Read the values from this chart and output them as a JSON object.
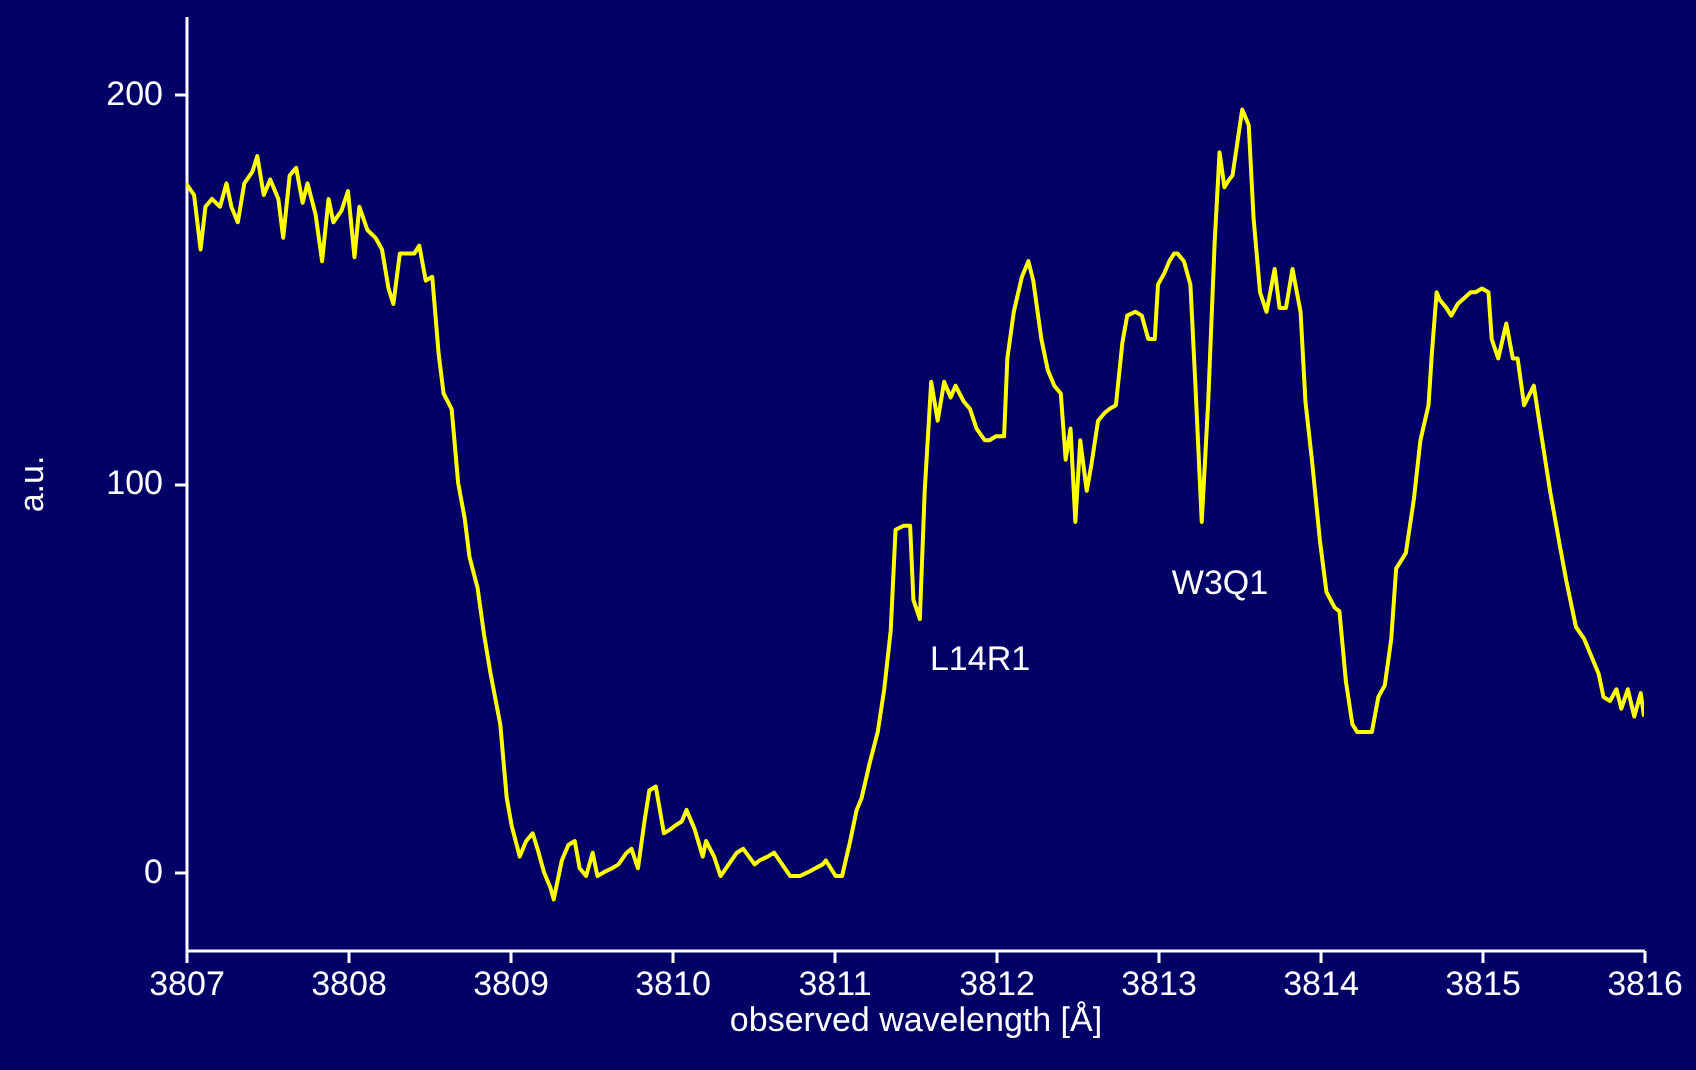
{
  "chart_data": {
    "type": "line",
    "xlabel": "observed wavelength [Å]",
    "ylabel": "a.u.",
    "xlim": [
      3807,
      3816
    ],
    "xticks": [
      3807,
      3808,
      3809,
      3810,
      3811,
      3812,
      3813,
      3814,
      3815,
      3816
    ],
    "ylim": [
      -20,
      220
    ],
    "yticks": [
      0,
      100,
      200
    ],
    "grid": false,
    "marker": "none",
    "line_style": "solid",
    "annotations": [
      "L14R1",
      "W3Q1"
    ],
    "series": [
      {
        "color": "#ffff00",
        "x": [
          3807.0,
          3807.05,
          3807.09,
          3807.12,
          3807.16,
          3807.21,
          3807.25,
          3807.28,
          3807.32,
          3807.36,
          3807.41,
          3807.44,
          3807.48,
          3807.52,
          3807.57,
          3807.6,
          3807.64,
          3807.68,
          3807.72,
          3807.75,
          3807.8,
          3807.84,
          3807.88,
          3807.91,
          3807.96,
          3808.0,
          3808.04,
          3808.07,
          3808.12,
          3808.17,
          3808.21,
          3808.25,
          3808.28,
          3808.32,
          3808.37,
          3808.41,
          3808.44,
          3808.48,
          3808.52,
          3808.56,
          3808.59,
          3808.64,
          3808.68,
          3808.72,
          3808.75,
          3808.8,
          3808.84,
          3808.88,
          3808.94,
          3808.98,
          3809.01,
          3809.06,
          3809.1,
          3809.14,
          3809.17,
          3809.21,
          3809.25,
          3809.27,
          3809.32,
          3809.36,
          3809.4,
          3809.43,
          3809.47,
          3809.51,
          3809.54,
          3809.58,
          3809.63,
          3809.67,
          3809.72,
          3809.75,
          3809.79,
          3809.83,
          3809.86,
          3809.9,
          3809.95,
          3809.99,
          3810.02,
          3810.06,
          3810.09,
          3810.14,
          3810.19,
          3810.21,
          3810.26,
          3810.3,
          3810.35,
          3810.4,
          3810.44,
          3810.51,
          3810.54,
          3810.59,
          3810.63,
          3810.68,
          3810.73,
          3810.79,
          3810.84,
          3810.93,
          3810.95,
          3811.01,
          3811.05,
          3811.1,
          3811.14,
          3811.17,
          3811.22,
          3811.27,
          3811.31,
          3811.35,
          3811.38,
          3811.43,
          3811.47,
          3811.49,
          3811.53,
          3811.56,
          3811.6,
          3811.64,
          3811.68,
          3811.72,
          3811.75,
          3811.8,
          3811.84,
          3811.88,
          3811.93,
          3811.96,
          3812.0,
          3812.05,
          3812.07,
          3812.11,
          3812.16,
          3812.2,
          3812.23,
          3812.28,
          3812.32,
          3812.36,
          3812.4,
          3812.43,
          3812.46,
          3812.49,
          3812.52,
          3812.56,
          3812.59,
          3812.63,
          3812.67,
          3812.7,
          3812.74,
          3812.78,
          3812.81,
          3812.86,
          3812.9,
          3812.94,
          3812.98,
          3813.0,
          3813.04,
          3813.07,
          3813.1,
          3813.12,
          3813.16,
          3813.2,
          3813.23,
          3813.27,
          3813.31,
          3813.35,
          3813.38,
          3813.41,
          3813.44,
          3813.46,
          3813.52,
          3813.56,
          3813.59,
          3813.63,
          3813.67,
          3813.72,
          3813.75,
          3813.79,
          3813.83,
          3813.88,
          3813.91,
          3813.95,
          3814.0,
          3814.04,
          3814.09,
          3814.12,
          3814.16,
          3814.2,
          3814.23,
          3814.32,
          3814.36,
          3814.4,
          3814.44,
          3814.47,
          3814.53,
          3814.58,
          3814.62,
          3814.67,
          3814.69,
          3814.72,
          3814.74,
          3814.78,
          3814.81,
          3814.85,
          3814.93,
          3814.96,
          3815.0,
          3815.04,
          3815.06,
          3815.1,
          3815.15,
          3815.19,
          3815.22,
          3815.26,
          3815.32,
          3815.36,
          3815.42,
          3815.48,
          3815.52,
          3815.58,
          3815.63,
          3815.67,
          3815.72,
          3815.75,
          3815.79,
          3815.83,
          3815.86,
          3815.9,
          3815.94,
          3815.98,
          3816.0
        ],
        "values": [
          177,
          174,
          160,
          171,
          173,
          171,
          177,
          171,
          167,
          177,
          180,
          184,
          174,
          178,
          173,
          163,
          179,
          181,
          172,
          177,
          169,
          157,
          173,
          167,
          170,
          175,
          158,
          171,
          165,
          163,
          160,
          150,
          146,
          159,
          159,
          159,
          161,
          152,
          153,
          133,
          123,
          119,
          100,
          91,
          81,
          73,
          61,
          51,
          38,
          19,
          12,
          4,
          8,
          10,
          6,
          0,
          -4,
          -7,
          3,
          7,
          8,
          1,
          -1,
          5,
          -1,
          0,
          1,
          2,
          5,
          6,
          1,
          13,
          21,
          22,
          10,
          11,
          12,
          13,
          16,
          11,
          4,
          8,
          4,
          -1,
          2,
          5,
          6,
          2,
          3,
          4,
          5,
          2,
          -1,
          -1,
          0,
          2,
          3,
          -1,
          -1,
          8,
          16,
          19,
          28,
          36,
          47,
          62,
          88,
          89,
          89,
          70,
          65,
          98,
          126,
          116,
          126,
          122,
          125,
          121,
          119,
          114,
          111,
          111,
          112,
          112,
          132,
          144,
          153,
          157,
          152,
          137,
          129,
          125,
          123,
          106,
          114,
          90,
          111,
          98,
          105,
          116,
          118,
          119,
          120,
          136,
          143,
          144,
          143,
          137,
          137,
          151,
          154,
          157,
          159,
          159,
          157,
          151,
          126,
          90,
          121,
          162,
          185,
          176,
          178,
          179,
          196,
          192,
          168,
          149,
          144,
          155,
          145,
          145,
          155,
          144,
          121,
          106,
          85,
          72,
          68,
          67,
          49,
          38,
          36,
          36,
          45,
          48,
          60,
          78,
          82,
          96,
          111,
          120,
          133,
          149,
          147,
          145,
          143,
          146,
          149,
          149,
          150,
          149,
          137,
          132,
          141,
          132,
          132,
          120,
          125,
          114,
          98,
          84,
          75,
          63,
          60,
          56,
          51,
          45,
          44,
          47,
          42,
          47,
          40,
          46,
          40
        ]
      }
    ]
  }
}
